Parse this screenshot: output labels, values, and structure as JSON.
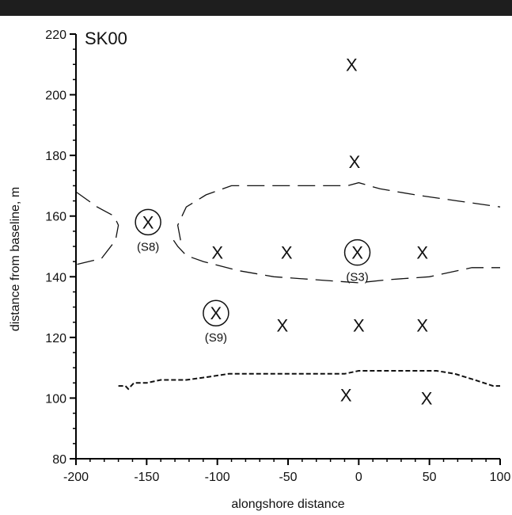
{
  "chart_data": {
    "type": "scatter",
    "title": "SK00",
    "xlabel": "alongshore distance",
    "ylabel": "distance from baseline, m",
    "xlim": [
      -200,
      100
    ],
    "ylim": [
      80,
      220
    ],
    "xticks": [
      -200,
      -150,
      -100,
      -50,
      0,
      50,
      100
    ],
    "yticks": [
      80,
      100,
      120,
      140,
      160,
      180,
      200,
      220
    ],
    "xtick_labels": [
      "-200",
      "-150",
      "-100",
      "-50",
      "0",
      "50",
      "100"
    ],
    "ytick_labels": [
      "80",
      "100",
      "120",
      "140",
      "160",
      "180",
      "200",
      "220"
    ],
    "marker_symbol": "X",
    "grid": false,
    "legend": "none",
    "points": [
      {
        "x": -5,
        "y": 210
      },
      {
        "x": -3,
        "y": 178
      },
      {
        "x": -100,
        "y": 148
      },
      {
        "x": -51,
        "y": 148
      },
      {
        "x": 45,
        "y": 148
      },
      {
        "x": -54,
        "y": 124
      },
      {
        "x": 0,
        "y": 124
      },
      {
        "x": 45,
        "y": 124
      },
      {
        "x": -9,
        "y": 101
      },
      {
        "x": 48,
        "y": 100
      }
    ],
    "circled_points": [
      {
        "x": -149,
        "y": 158,
        "label": "(S8)"
      },
      {
        "x": -1,
        "y": 148,
        "label": "(S3)"
      },
      {
        "x": -101,
        "y": 128,
        "label": "(S9)"
      }
    ],
    "contours": [
      {
        "style": "long-dash",
        "points": [
          [
            -200,
            168
          ],
          [
            -185,
            163
          ],
          [
            -173,
            160
          ],
          [
            -170,
            157
          ],
          [
            -172,
            152
          ],
          [
            -182,
            146
          ],
          [
            -200,
            144
          ]
        ]
      },
      {
        "style": "long-dash",
        "points": [
          [
            -126,
            152
          ],
          [
            -128,
            157
          ],
          [
            -122,
            163
          ],
          [
            -108,
            167
          ],
          [
            -90,
            170
          ],
          [
            -60,
            170
          ],
          [
            -30,
            170
          ],
          [
            -8,
            170
          ],
          [
            0,
            171
          ],
          [
            15,
            169
          ],
          [
            40,
            167
          ],
          [
            70,
            165
          ],
          [
            100,
            163
          ]
        ]
      },
      {
        "style": "long-dash",
        "points": [
          [
            -131,
            152
          ],
          [
            -128,
            150
          ],
          [
            -122,
            147
          ],
          [
            -110,
            145
          ],
          [
            -85,
            142
          ],
          [
            -60,
            140
          ],
          [
            -30,
            139
          ],
          [
            0,
            138
          ],
          [
            20,
            139
          ],
          [
            50,
            140
          ],
          [
            80,
            143
          ],
          [
            100,
            143
          ]
        ]
      },
      {
        "style": "short-dash",
        "points": [
          [
            -170,
            104
          ],
          [
            -165,
            104
          ],
          [
            -163,
            103
          ],
          [
            -159,
            105
          ],
          [
            -150,
            105
          ],
          [
            -140,
            106
          ],
          [
            -122,
            106
          ],
          [
            -106,
            107
          ],
          [
            -92,
            108
          ],
          [
            -82,
            108
          ],
          [
            -50,
            108
          ],
          [
            -10,
            108
          ],
          [
            0,
            109
          ],
          [
            25,
            109
          ],
          [
            55,
            109
          ],
          [
            68,
            108
          ],
          [
            82,
            106
          ],
          [
            95,
            104
          ],
          [
            100,
            104
          ]
        ]
      }
    ]
  }
}
